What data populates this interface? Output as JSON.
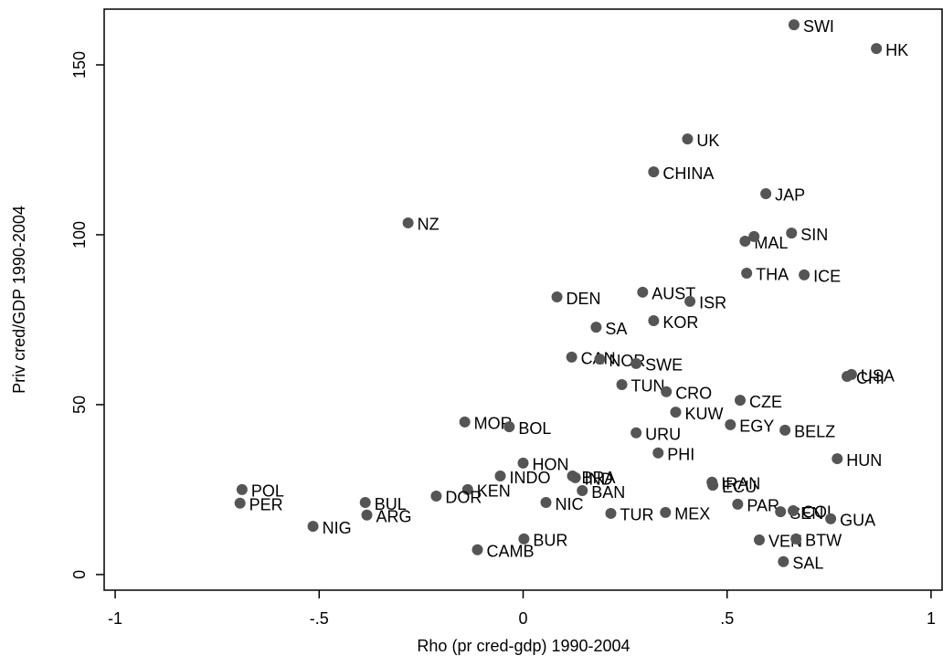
{
  "chart_data": {
    "type": "scatter",
    "xlabel": "Rho (pr cred-gdp) 1990-2004",
    "ylabel": "Priv cred/GDP 1990-2004",
    "xlim": [
      -1.027,
      1.027
    ],
    "ylim": [
      -4.6,
      166.4
    ],
    "xticks": [
      {
        "value": -1,
        "label": "-1"
      },
      {
        "value": -0.5,
        "label": "-.5"
      },
      0,
      {
        "value": 0.5,
        "label": ".5"
      },
      1
    ],
    "yticks": [
      0,
      50,
      100,
      150
    ],
    "color": "#555555",
    "point_labels": [
      "SWI",
      "HK",
      "UK",
      "CHINA",
      "JAP",
      "NZ",
      "SIN",
      "MAL",
      null,
      "THA",
      "ICE",
      "DEN",
      "AUST",
      "ISR",
      "KOR",
      "SA",
      "CAN",
      "NOR",
      "SWE",
      "TUN",
      "CRO",
      "CZE",
      "CHI",
      "USA",
      "KUW",
      "EGY",
      "BELZ",
      "URU",
      "MOR",
      "BOL",
      "PHI",
      "HUN",
      "HON",
      "INDO",
      "BRA",
      "IND",
      "BAN",
      "IRAN",
      "ECU",
      "KEN",
      "POL",
      "PER",
      "BUL",
      "ARG",
      "DOR",
      "NIC",
      "PAR",
      "SEN",
      "COL",
      "GUA",
      "NIG",
      "TUR",
      "MEX",
      "BUR",
      "CAMB",
      "VEN",
      "BTW",
      "SAL"
    ],
    "x": [
      0.664,
      0.866,
      0.403,
      0.32,
      0.595,
      -0.282,
      0.658,
      0.544,
      0.566,
      0.548,
      0.689,
      0.083,
      0.293,
      0.409,
      0.32,
      0.179,
      0.119,
      0.188,
      0.277,
      0.242,
      0.351,
      0.532,
      0.794,
      0.805,
      0.374,
      0.508,
      0.642,
      0.277,
      -0.143,
      -0.034,
      0.331,
      0.77,
      0.0,
      -0.056,
      0.121,
      0.128,
      0.145,
      0.463,
      0.465,
      -0.136,
      -0.689,
      -0.694,
      -0.387,
      -0.383,
      -0.213,
      0.056,
      0.526,
      0.631,
      0.662,
      0.754,
      -0.515,
      0.215,
      0.349,
      0.002,
      -0.112,
      0.579,
      0.669,
      0.638
    ],
    "values": [
      161.8,
      154.8,
      128.2,
      118.5,
      112.1,
      103.5,
      100.5,
      98.1,
      99.5,
      88.7,
      88.2,
      81.7,
      83.1,
      80.4,
      74.7,
      72.8,
      64.0,
      63.4,
      62.1,
      55.9,
      53.8,
      51.3,
      58.3,
      58.9,
      47.8,
      44.1,
      42.5,
      41.7,
      44.9,
      43.5,
      35.8,
      34.1,
      32.8,
      29.0,
      29.0,
      28.5,
      24.7,
      27.2,
      26.3,
      25.0,
      25.0,
      21.0,
      21.2,
      17.5,
      23.1,
      21.2,
      20.7,
      18.5,
      18.8,
      16.4,
      14.2,
      18.0,
      18.3,
      10.5,
      7.3,
      10.2,
      10.5,
      3.8
    ]
  }
}
